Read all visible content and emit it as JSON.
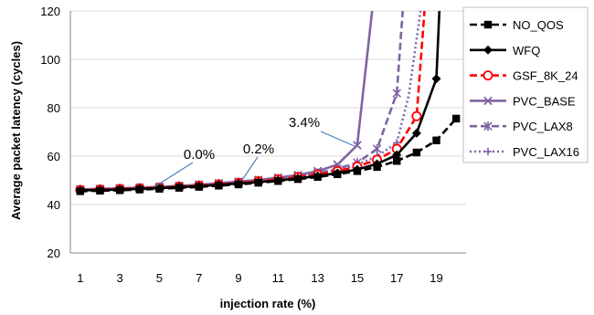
{
  "chart_data": {
    "type": "line",
    "xlabel": "injection rate (%)",
    "ylabel": "Average packet latency (cycles)",
    "xlim": [
      1,
      20
    ],
    "ylim": [
      20,
      120
    ],
    "xticks": [
      1,
      3,
      5,
      7,
      9,
      11,
      13,
      15,
      17,
      19
    ],
    "yticks": [
      20,
      40,
      60,
      80,
      100,
      120
    ],
    "grid": "horizontal",
    "legend": "right",
    "series": [
      {
        "name": "NO_QOS",
        "color": "#000000",
        "dash": "dashed",
        "marker": "square",
        "x": [
          1,
          2,
          3,
          4,
          5,
          6,
          7,
          8,
          9,
          10,
          11,
          12,
          13,
          14,
          15,
          16,
          17,
          18,
          19,
          20
        ],
        "y": [
          45.5,
          45.7,
          45.9,
          46.2,
          46.5,
          46.9,
          47.3,
          47.8,
          48.3,
          49.0,
          49.7,
          50.5,
          51.4,
          52.5,
          53.8,
          55.5,
          58.0,
          61.5,
          66.5,
          75.5
        ]
      },
      {
        "name": "WFQ",
        "color": "#000000",
        "dash": "solid",
        "marker": "diamond",
        "x": [
          1,
          2,
          3,
          4,
          5,
          6,
          7,
          8,
          9,
          10,
          11,
          12,
          13,
          14,
          15,
          16,
          17,
          18,
          19,
          19.15
        ],
        "y": [
          45.8,
          46.0,
          46.2,
          46.5,
          46.8,
          47.2,
          47.6,
          48.1,
          48.7,
          49.3,
          50.0,
          50.8,
          51.8,
          53.0,
          54.5,
          56.8,
          60.5,
          69.5,
          92.0,
          120
        ]
      },
      {
        "name": "GSF_8K_24",
        "color": "#ff0000",
        "dash": "dashed",
        "marker": "circle",
        "x": [
          1,
          2,
          3,
          4,
          5,
          6,
          7,
          8,
          9,
          10,
          11,
          12,
          13,
          14,
          15,
          16,
          17,
          18,
          18.4
        ],
        "y": [
          46.0,
          46.2,
          46.4,
          46.7,
          47.0,
          47.4,
          47.8,
          48.3,
          48.9,
          49.6,
          50.4,
          51.3,
          52.4,
          53.8,
          55.7,
          58.5,
          63.0,
          76.5,
          120
        ]
      },
      {
        "name": "PVC_BASE",
        "color": "#8064a2",
        "dash": "solid",
        "marker": "x",
        "x": [
          1,
          2,
          3,
          4,
          5,
          6,
          7,
          8,
          9,
          10,
          11,
          12,
          13,
          14,
          15,
          15.75
        ],
        "y": [
          46.3,
          46.5,
          46.7,
          47.0,
          47.3,
          47.7,
          48.2,
          48.8,
          49.5,
          50.2,
          51.1,
          52.2,
          53.8,
          56.5,
          64.5,
          120
        ]
      },
      {
        "name": "PVC_LAX8",
        "color": "#8064a2",
        "dash": "dashed",
        "marker": "star",
        "x": [
          1,
          2,
          3,
          4,
          5,
          6,
          7,
          8,
          9,
          10,
          11,
          12,
          13,
          14,
          15,
          16,
          17,
          17.3
        ],
        "y": [
          46.2,
          46.4,
          46.6,
          46.9,
          47.2,
          47.6,
          48.1,
          48.6,
          49.2,
          49.9,
          50.7,
          51.7,
          53.0,
          54.8,
          57.3,
          63.0,
          86.0,
          120
        ]
      },
      {
        "name": "PVC_LAX16",
        "color": "#8064a2",
        "dash": "dotted",
        "marker": "plus",
        "x": [
          1,
          2,
          3,
          4,
          5,
          6,
          7,
          8,
          9,
          10,
          11,
          12,
          13,
          14,
          15,
          16,
          17,
          17.6,
          18.2
        ],
        "y": [
          46.1,
          46.3,
          46.5,
          46.8,
          47.1,
          47.5,
          47.9,
          48.4,
          49.0,
          49.7,
          50.5,
          51.5,
          52.7,
          54.3,
          56.5,
          60.0,
          65.5,
          85.0,
          120
        ]
      }
    ],
    "annotations": [
      {
        "text": "0.0%",
        "x": 5.3,
        "y": 45.0
      },
      {
        "text": "0.2%",
        "x": 10.1,
        "y": 50.0
      },
      {
        "text": "3.4%",
        "x": 15.0,
        "y": 65.0
      }
    ]
  }
}
